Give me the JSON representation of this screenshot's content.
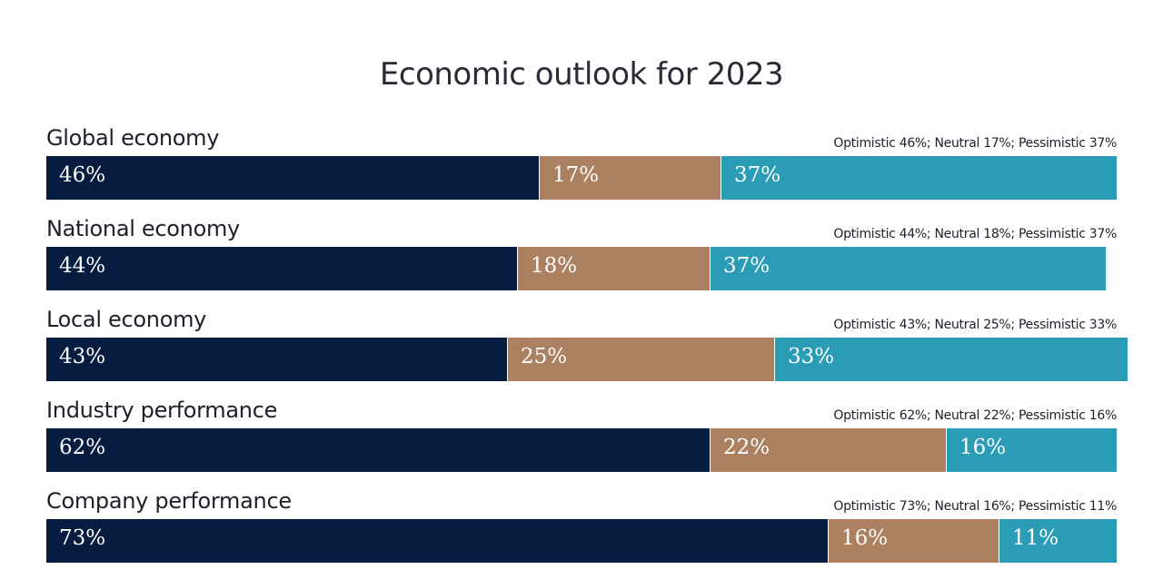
{
  "chart_data": {
    "type": "bar",
    "orientation": "horizontal",
    "stacked": true,
    "title": "Economic outlook for 2023",
    "categories": [
      "Global economy",
      "National economy",
      "Local economy",
      "Industry performance",
      "Company performance"
    ],
    "series": [
      {
        "name": "Optimistic",
        "color": "#061d41",
        "values": [
          46,
          44,
          43,
          62,
          73
        ]
      },
      {
        "name": "Neutral",
        "color": "#ac8161",
        "values": [
          17,
          18,
          25,
          22,
          16
        ]
      },
      {
        "name": "Pessimistic",
        "color": "#2b9cb5",
        "values": [
          37,
          37,
          33,
          16,
          11
        ]
      }
    ],
    "value_labels": [
      [
        "46%",
        "17%",
        "37%"
      ],
      [
        "44%",
        "18%",
        "37%"
      ],
      [
        "43%",
        "25%",
        "33%"
      ],
      [
        "62%",
        "22%",
        "16%"
      ],
      [
        "73%",
        "16%",
        "11%"
      ]
    ],
    "summaries": [
      "Optimistic 46%; Neutral 17%; Pessimistic 37%",
      "Optimistic 44%; Neutral 18%; Pessimistic 37%",
      "Optimistic 43%; Neutral 25%; Pessimistic 33%",
      "Optimistic 62%; Neutral 22%; Pessimistic 16%",
      "Optimistic 73%; Neutral 16%; Pessimistic 11%"
    ],
    "xlim": [
      0,
      100
    ],
    "unit": "%"
  }
}
